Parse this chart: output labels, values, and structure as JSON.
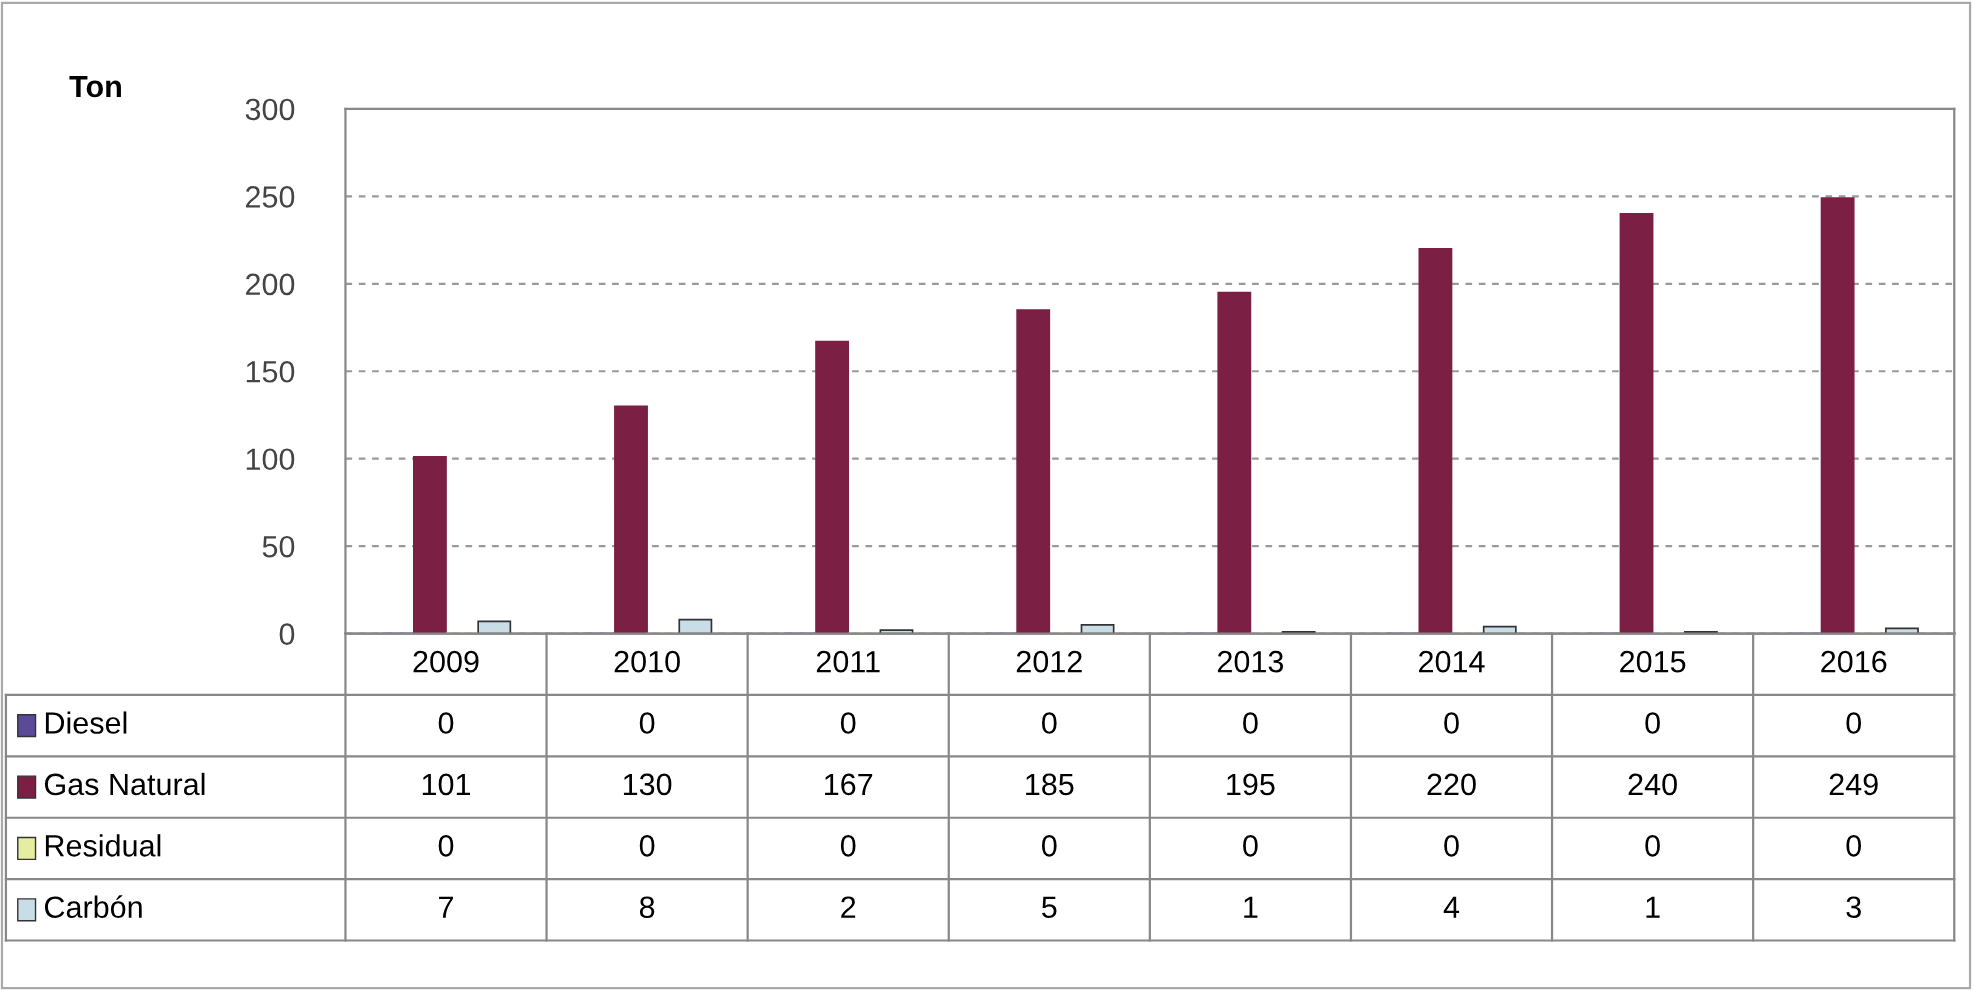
{
  "chart_data": {
    "type": "bar",
    "ylabel": "Ton",
    "categories": [
      "2009",
      "2010",
      "2011",
      "2012",
      "2013",
      "2014",
      "2015",
      "2016"
    ],
    "series": [
      {
        "name": "Diesel",
        "color": "#5b4a9a",
        "values": [
          0,
          0,
          0,
          0,
          0,
          0,
          0,
          0
        ]
      },
      {
        "name": "Gas Natural",
        "color": "#7b1f45",
        "values": [
          101,
          130,
          167,
          185,
          195,
          220,
          240,
          249
        ]
      },
      {
        "name": "Residual",
        "color": "#e6eca0",
        "values": [
          0,
          0,
          0,
          0,
          0,
          0,
          0,
          0
        ]
      },
      {
        "name": "Carbón",
        "color": "#c8dde6",
        "values": [
          7,
          8,
          2,
          5,
          1,
          4,
          1,
          3
        ]
      }
    ],
    "ylim": [
      0,
      300
    ],
    "yticks": [
      0,
      50,
      100,
      150,
      200,
      250,
      300
    ],
    "grid": "y",
    "data_labels": true,
    "legend": "bottom left"
  }
}
